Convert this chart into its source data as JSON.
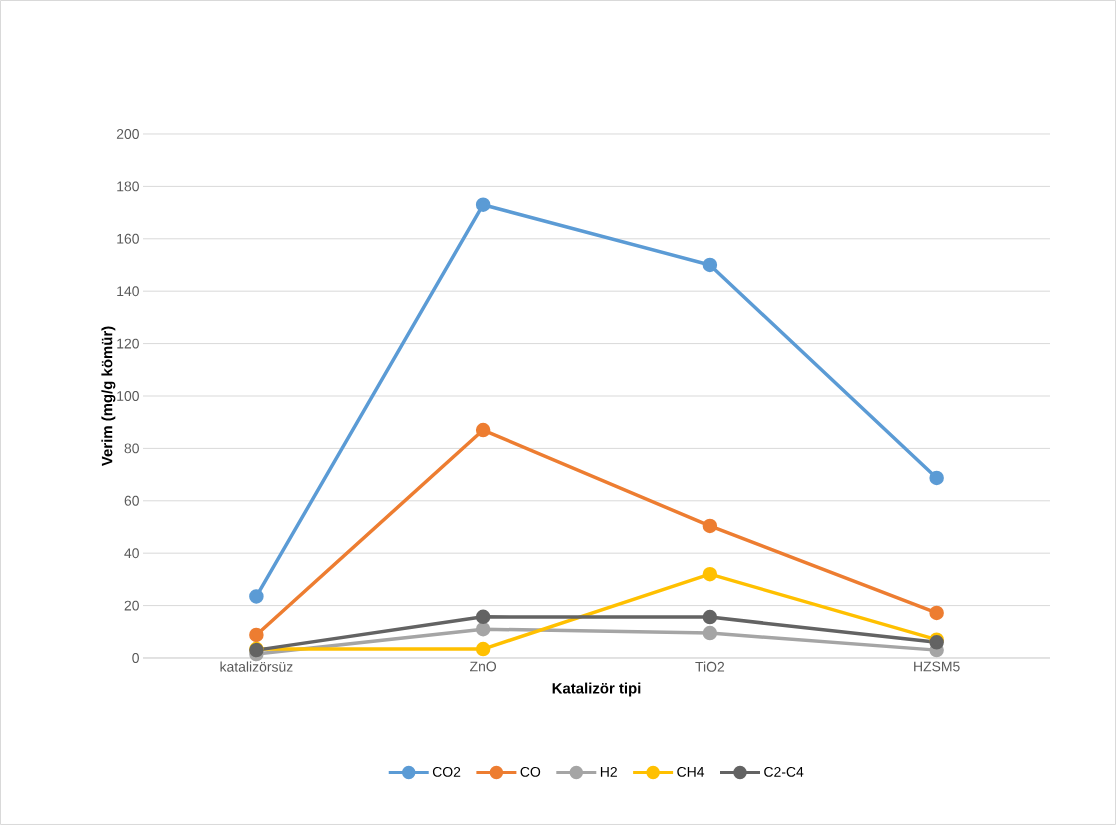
{
  "chart_data": {
    "type": "line",
    "xlabel": "Katalizör tipi",
    "ylabel": "Verim (mg/g kömür)",
    "categories": [
      "katalizörsüz",
      "ZnO",
      "TiO2",
      "HZSM5"
    ],
    "series": [
      {
        "name": "CO2",
        "color": "#5b9bd5",
        "values": [
          23.5,
          173,
          150,
          68.7
        ]
      },
      {
        "name": "CO",
        "color": "#ed7d31",
        "values": [
          8.8,
          87,
          50.4,
          17.2
        ]
      },
      {
        "name": "H2",
        "color": "#a5a5a5",
        "values": [
          1.5,
          11,
          9.5,
          3
        ]
      },
      {
        "name": "CH4",
        "color": "#ffc000",
        "values": [
          3.4,
          3.4,
          32,
          7
        ]
      },
      {
        "name": "C2-C4",
        "color": "#636363",
        "values": [
          3,
          15.7,
          15.6,
          6
        ]
      }
    ],
    "ylim": [
      0,
      200
    ],
    "yticks": [
      0,
      20,
      40,
      60,
      80,
      100,
      120,
      140,
      160,
      180,
      200
    ],
    "grid": "y",
    "legend": "bottom",
    "marker": "circle",
    "line_style": "solid"
  }
}
